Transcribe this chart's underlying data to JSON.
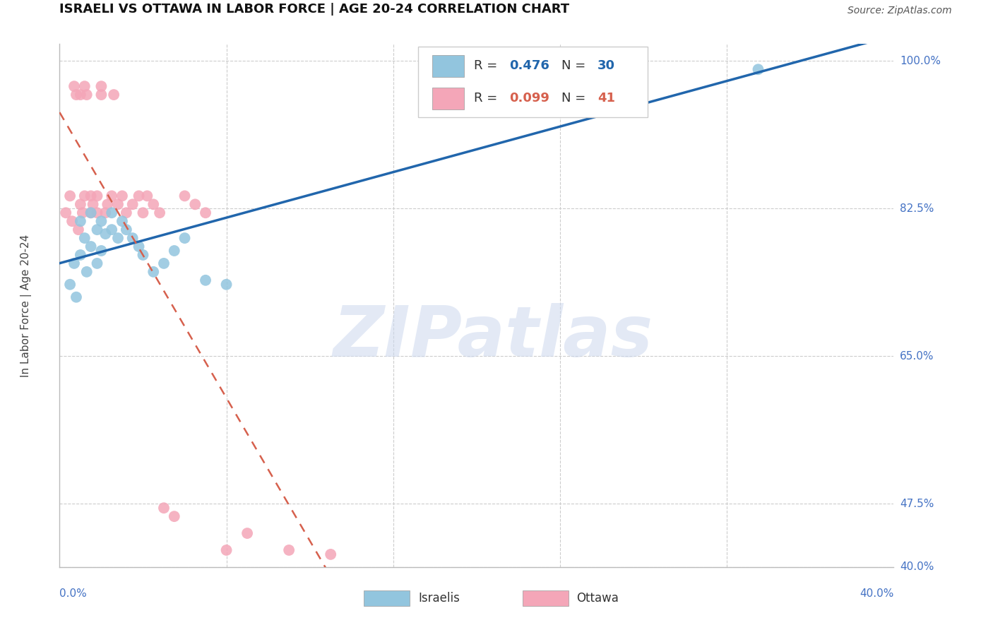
{
  "title": "ISRAELI VS OTTAWA IN LABOR FORCE | AGE 20-24 CORRELATION CHART",
  "ylabel": "In Labor Force | Age 20-24",
  "source": "Source: ZipAtlas.com",
  "watermark": "ZIPatlas",
  "xlim": [
    0.0,
    0.4
  ],
  "ylim": [
    0.4,
    1.02
  ],
  "xticks": [
    0.0,
    0.08,
    0.16,
    0.24,
    0.32,
    0.4
  ],
  "yticks": [
    0.4,
    0.475,
    0.65,
    0.825,
    1.0
  ],
  "ytick_labels": [
    "40.0%",
    "47.5%",
    "65.0%",
    "82.5%",
    "100.0%"
  ],
  "legend_blue_R": "0.476",
  "legend_blue_N": "30",
  "legend_pink_R": "0.099",
  "legend_pink_N": "41",
  "blue_color": "#92c5de",
  "pink_color": "#f4a6b8",
  "blue_line_color": "#2166ac",
  "pink_line_color": "#d6604d",
  "axis_color": "#4472C4",
  "grid_color": "#cccccc",
  "background_color": "#ffffff",
  "israeli_x": [
    0.005,
    0.007,
    0.008,
    0.01,
    0.01,
    0.012,
    0.013,
    0.015,
    0.015,
    0.018,
    0.018,
    0.02,
    0.02,
    0.022,
    0.025,
    0.025,
    0.028,
    0.03,
    0.032,
    0.035,
    0.038,
    0.04,
    0.045,
    0.05,
    0.055,
    0.06,
    0.07,
    0.08,
    0.25,
    0.335
  ],
  "israeli_y": [
    0.735,
    0.76,
    0.72,
    0.81,
    0.77,
    0.79,
    0.75,
    0.82,
    0.78,
    0.8,
    0.76,
    0.81,
    0.775,
    0.795,
    0.82,
    0.8,
    0.79,
    0.81,
    0.8,
    0.79,
    0.78,
    0.77,
    0.75,
    0.76,
    0.775,
    0.79,
    0.74,
    0.735,
    0.97,
    0.99
  ],
  "ottawa_x": [
    0.003,
    0.005,
    0.006,
    0.007,
    0.008,
    0.009,
    0.01,
    0.01,
    0.011,
    0.012,
    0.012,
    0.013,
    0.015,
    0.015,
    0.016,
    0.018,
    0.018,
    0.02,
    0.02,
    0.022,
    0.023,
    0.025,
    0.026,
    0.028,
    0.03,
    0.032,
    0.035,
    0.038,
    0.04,
    0.042,
    0.045,
    0.048,
    0.05,
    0.055,
    0.06,
    0.065,
    0.07,
    0.08,
    0.09,
    0.11,
    0.13
  ],
  "ottawa_y": [
    0.82,
    0.84,
    0.81,
    0.97,
    0.96,
    0.8,
    0.96,
    0.83,
    0.82,
    0.97,
    0.84,
    0.96,
    0.82,
    0.84,
    0.83,
    0.84,
    0.82,
    0.97,
    0.96,
    0.82,
    0.83,
    0.84,
    0.96,
    0.83,
    0.84,
    0.82,
    0.83,
    0.84,
    0.82,
    0.84,
    0.83,
    0.82,
    0.47,
    0.46,
    0.84,
    0.83,
    0.82,
    0.42,
    0.44,
    0.42,
    0.415
  ]
}
